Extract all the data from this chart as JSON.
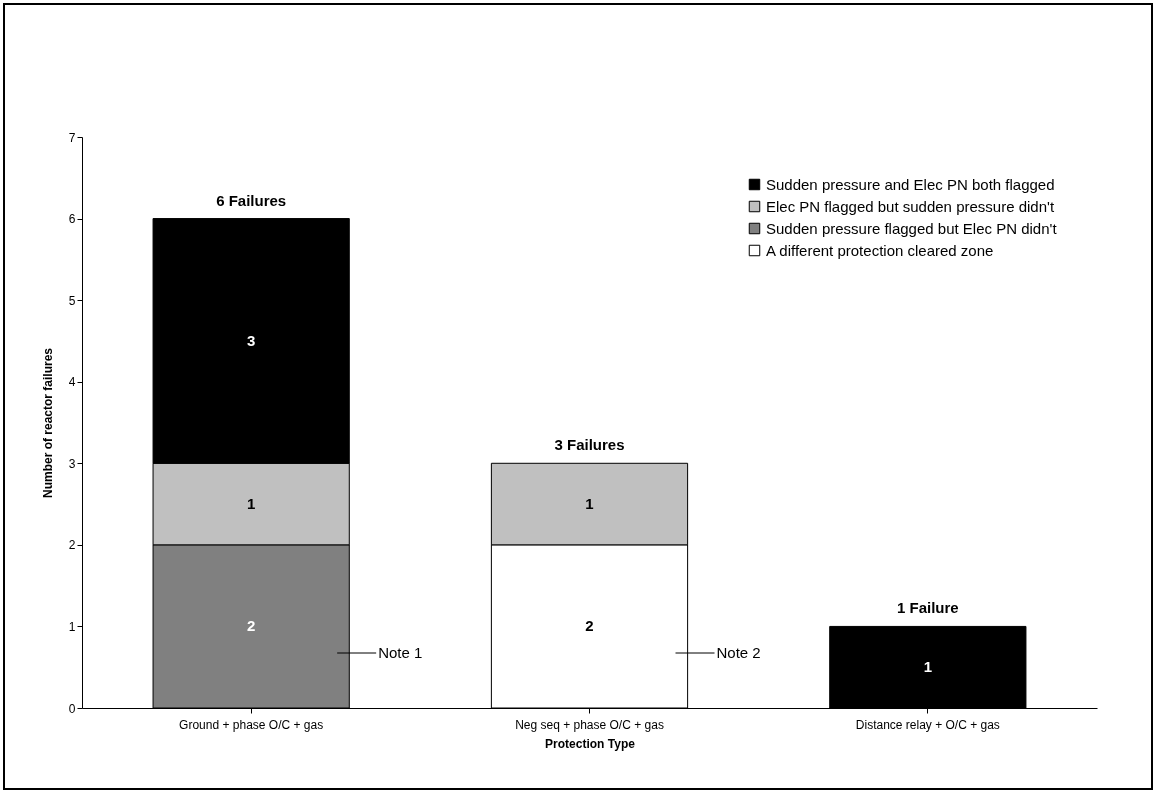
{
  "chart_data": {
    "type": "bar",
    "stacked": true,
    "xlabel": "Protection Type",
    "ylabel": "Number of reactor failures",
    "categories": [
      "Ground + phase O/C + gas",
      "Neg seq + phase O/C + gas",
      "Distance relay + O/C + gas"
    ],
    "series": [
      {
        "name": "A different protection cleared zone",
        "color": "#ffffff",
        "values": [
          null,
          2,
          null
        ]
      },
      {
        "name": "Sudden pressure flagged but Elec PN didn't",
        "color": "#808080",
        "values": [
          2,
          null,
          null
        ]
      },
      {
        "name": "Elec PN flagged but sudden pressure didn't",
        "color": "#c0c0c0",
        "values": [
          1,
          1,
          null
        ]
      },
      {
        "name": "Sudden pressure and Elec PN both flagged",
        "color": "#000000",
        "values": [
          3,
          null,
          1
        ]
      }
    ],
    "ylim": [
      0,
      7
    ],
    "yticks": [
      0,
      1,
      2,
      3,
      4,
      5,
      6,
      7
    ],
    "grid": false,
    "legend": "top right",
    "data_labels": true,
    "totals": [
      "6 Failures",
      "3 Failures",
      "1 Failure"
    ],
    "annotations": [
      "Note 1",
      "Note 2"
    ]
  }
}
